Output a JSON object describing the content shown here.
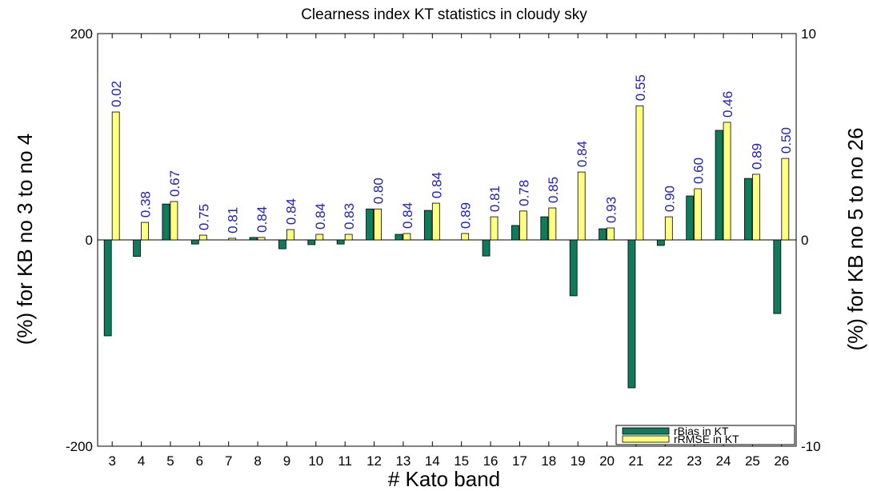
{
  "chart_data": {
    "type": "bar",
    "title": "Clearness index KT statistics in cloudy sky",
    "x_label": "# Kato band",
    "y_label": "(%) for KB no 3 to no 4",
    "y2_label": "(%) for KB no 5 to no 26",
    "categories": [
      "3",
      "4",
      "5",
      "6",
      "7",
      "8",
      "9",
      "10",
      "11",
      "12",
      "13",
      "14",
      "15",
      "16",
      "17",
      "18",
      "19",
      "20",
      "21",
      "22",
      "23",
      "24",
      "25",
      "26"
    ],
    "category_axes": [
      "y",
      "y",
      "y2",
      "y2",
      "y2",
      "y2",
      "y2",
      "y2",
      "y2",
      "y2",
      "y2",
      "y2",
      "y2",
      "y2",
      "y2",
      "y2",
      "y2",
      "y2",
      "y2",
      "y2",
      "y2",
      "y2",
      "y2",
      "y2"
    ],
    "series": [
      {
        "name": "rBias in KT",
        "color": "#0f7a5c",
        "values": [
          -93,
          -16,
          1.74,
          -0.2,
          0,
          0.12,
          -0.43,
          -0.23,
          -0.2,
          1.5,
          0.27,
          1.43,
          0,
          -0.78,
          0.7,
          1.12,
          -2.71,
          0.54,
          -7.17,
          -0.27,
          2.13,
          5.31,
          2.98,
          -3.57
        ]
      },
      {
        "name": "rRMSE in KT",
        "color": "#ffff80",
        "values": [
          124,
          17,
          1.86,
          0.23,
          0.08,
          0.12,
          0.5,
          0.27,
          0.27,
          1.5,
          0.31,
          1.78,
          0.31,
          1.12,
          1.4,
          1.55,
          3.29,
          0.58,
          6.5,
          1.12,
          2.48,
          5.7,
          3.18,
          3.95
        ]
      }
    ],
    "annotations": [
      "0.02",
      "0.38",
      "0.67",
      "0.75",
      "0.81",
      "0.84",
      "0.84",
      "0.84",
      "0.83",
      "0.80",
      "0.84",
      "0.84",
      "0.89",
      "0.81",
      "0.78",
      "0.85",
      "0.84",
      "0.93",
      "0.55",
      "0.90",
      "0.60",
      "0.46",
      "0.89",
      "0.50"
    ],
    "ylim": [
      -200,
      200
    ],
    "yticks": [
      -200,
      0,
      200
    ],
    "y2lim": [
      -10,
      10
    ],
    "y2ticks": [
      -10,
      0,
      10
    ],
    "zero_line": true,
    "legend": "lower right"
  }
}
